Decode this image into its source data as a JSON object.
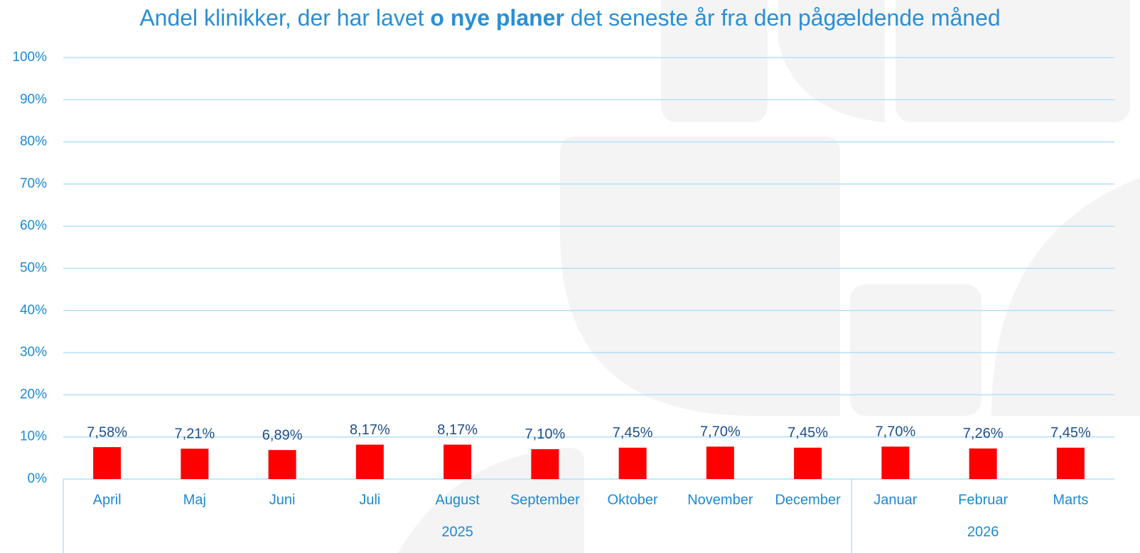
{
  "chart_data": {
    "type": "bar",
    "title": [
      "Andel klinikker, der har lavet ",
      "o nye planer",
      " det seneste år fra den pågældende måned"
    ],
    "categories": [
      "April",
      "Maj",
      "Juni",
      "Juli",
      "August",
      "September",
      "Oktober",
      "November",
      "December",
      "Januar",
      "Februar",
      "Marts"
    ],
    "values": [
      7.58,
      7.21,
      6.89,
      8.17,
      8.17,
      7.1,
      7.45,
      7.7,
      7.45,
      7.7,
      7.26,
      7.45
    ],
    "value_labels": [
      "7,58%",
      "7,21%",
      "6,89%",
      "8,17%",
      "8,17%",
      "7,10%",
      "7,45%",
      "7,70%",
      "7,45%",
      "7,70%",
      "7,26%",
      "7,45%"
    ],
    "groups": [
      {
        "label": "2025",
        "span": 9
      },
      {
        "label": "2026",
        "span": 3
      }
    ],
    "color": "#ff0000",
    "ylim": [
      0,
      100
    ],
    "yticks": [
      {
        "value": 0,
        "label": "0%"
      },
      {
        "value": 10,
        "label": "10%"
      },
      {
        "value": 20,
        "label": "20%"
      },
      {
        "value": 30,
        "label": "30%"
      },
      {
        "value": 40,
        "label": "40%"
      },
      {
        "value": 50,
        "label": "50%"
      },
      {
        "value": 60,
        "label": "60%"
      },
      {
        "value": 70,
        "label": "70%"
      },
      {
        "value": 80,
        "label": "80%"
      },
      {
        "value": 90,
        "label": "90%"
      },
      {
        "value": 100,
        "label": "100%"
      }
    ],
    "grid": true
  }
}
